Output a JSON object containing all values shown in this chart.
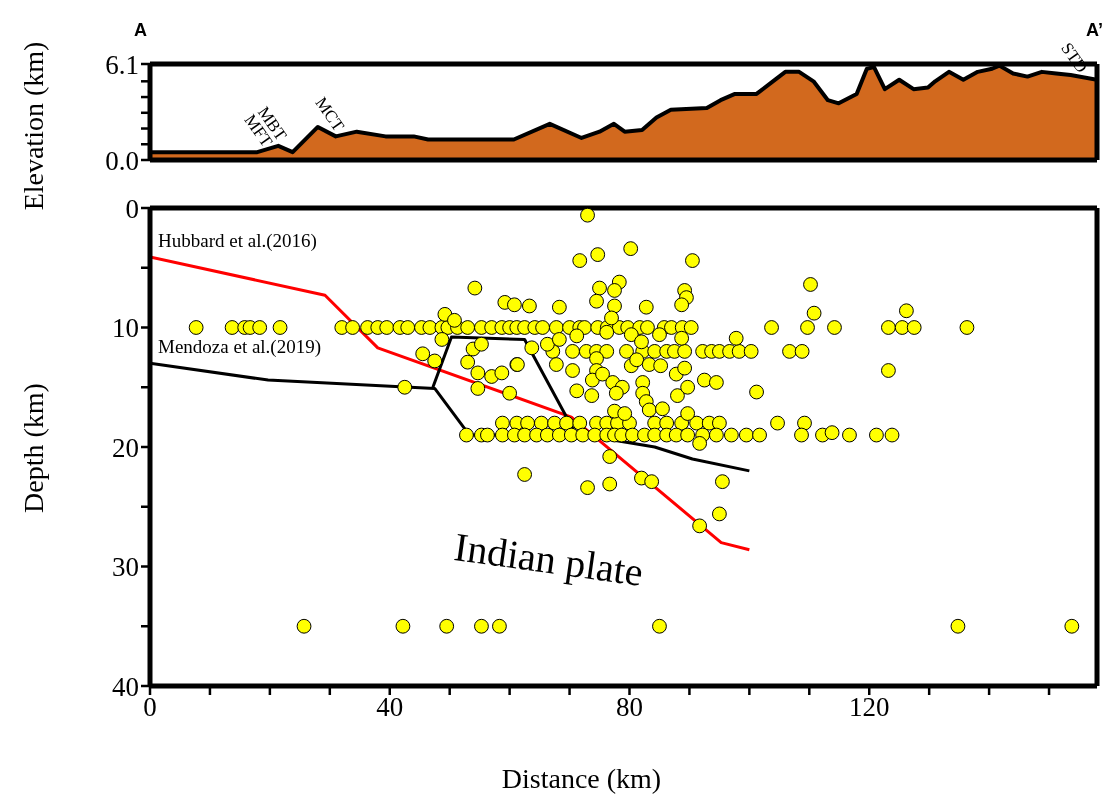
{
  "chart_data": [
    {
      "type": "area",
      "ylabel": "Elevation (km)",
      "color": "#d2691e",
      "xlim": [
        0,
        158
      ],
      "ylim": [
        0,
        6.1
      ],
      "tick_labels": "y",
      "yticks": [
        {
          "value": 0,
          "label": "0.0"
        },
        {
          "value": 1,
          "label": null
        },
        {
          "value": 2,
          "label": null
        },
        {
          "value": 3,
          "label": null
        },
        {
          "value": 4,
          "label": null
        },
        {
          "value": 5,
          "label": null
        },
        6.1
      ],
      "x": [
        0,
        10.7,
        17.9,
        21.4,
        23.8,
        28,
        31,
        34.5,
        39.3,
        44,
        46.4,
        60.7,
        66.7,
        72,
        75,
        77.4,
        79.2,
        82.1,
        84.5,
        86.9,
        92.9,
        95.2,
        97.6,
        101.2,
        103.6,
        106,
        108.3,
        110.7,
        113.1,
        114.9,
        117.9,
        119.6,
        120.8,
        122.6,
        125,
        127.4,
        129.8,
        131,
        133.3,
        135.7,
        138.1,
        140.5,
        141.7,
        144,
        146.4,
        148.8,
        151.2,
        153.6,
        158
      ],
      "values": [
        0.5,
        0.5,
        0.5,
        0.9,
        0.5,
        2.1,
        1.5,
        1.8,
        1.5,
        1.5,
        1.3,
        1.3,
        2.3,
        1.4,
        1.8,
        2.3,
        1.8,
        1.9,
        2.7,
        3.2,
        3.3,
        3.8,
        4.2,
        4.2,
        4.9,
        5.6,
        5.6,
        5,
        3.8,
        3.6,
        4.2,
        5.8,
        5.9,
        4.5,
        5.1,
        4.5,
        4.6,
        5,
        5.6,
        5.1,
        5.6,
        5.8,
        6,
        5.5,
        5.3,
        5.6,
        5.5,
        5.4,
        5.1
      ],
      "annotations": [
        "A",
        "A’",
        {
          "text": "MFT",
          "x": 19,
          "y": 0.5
        },
        {
          "text": "MBT",
          "x": 21.4,
          "y": 0.9
        },
        {
          "text": "MCT",
          "x": 31,
          "y": 1.5
        },
        {
          "text": "STD",
          "x": 155,
          "y": 5.2
        }
      ]
    },
    {
      "type": "scatter",
      "xlabel": "Distance (km)",
      "ylabel": "Depth (km)",
      "xlim": [
        0,
        158
      ],
      "ylim": [
        40,
        0
      ],
      "xticks": [
        0,
        {
          "value": 10,
          "label": null
        },
        {
          "value": 20,
          "label": null
        },
        {
          "value": 30,
          "label": null
        },
        40,
        {
          "value": 50,
          "label": null
        },
        {
          "value": 60,
          "label": null
        },
        {
          "value": 70,
          "label": null
        },
        80,
        {
          "value": 90,
          "label": null
        },
        {
          "value": 100,
          "label": null
        },
        {
          "value": 110,
          "label": null
        },
        120,
        {
          "value": 130,
          "label": null
        },
        {
          "value": 140,
          "label": null
        },
        {
          "value": 150,
          "label": null
        }
      ],
      "yticks": [
        0,
        {
          "value": 5,
          "label": null
        },
        10,
        {
          "value": 15,
          "label": null
        },
        20,
        {
          "value": 25,
          "label": null
        },
        30,
        {
          "value": 35,
          "label": null
        },
        40
      ],
      "annotations": [
        "Indian plate"
      ],
      "series": [
        {
          "color": "#ffff00",
          "marker": "circle",
          "x": [
            7.7,
            13.7,
            15.8,
            16.7,
            18.3,
            21.7,
            32,
            33.8,
            36.3,
            38,
            39.5,
            41.7,
            43,
            45.3,
            46.7,
            48.7,
            49.7,
            51.3,
            53,
            55.3,
            57,
            58.7,
            60,
            61.2,
            62.5,
            64.2,
            65.5,
            67.8,
            70,
            71.7,
            72.5,
            74.7,
            76.3,
            78.3,
            79.7,
            81.7,
            83,
            85.8,
            87,
            88.8,
            90.3,
            103.7,
            109.7,
            114.2,
            123.2,
            125.5,
            127.5,
            136.3,
            67.2,
            70.5,
            72.8,
            74.5,
            76.2,
            79.5,
            82.2,
            84.2,
            86.2,
            87.5,
            89.2,
            92.2,
            93.7,
            95,
            96.7,
            98.3,
            100.3,
            106.7,
            108.8,
            58.8,
            61.2,
            63,
            65.3,
            67.5,
            69.5,
            71.7,
            74.5,
            76.2,
            78,
            80,
            84.2,
            86.2,
            88.7,
            91.2,
            93.3,
            95,
            104.7,
            109.2,
            52.8,
            55.3,
            56.3,
            58.8,
            60.8,
            62.5,
            64.5,
            66.3,
            68.3,
            70.3,
            72.2,
            74.2,
            76.2,
            77.5,
            78.7,
            80.5,
            82.5,
            84.2,
            86.2,
            87.8,
            89.7,
            92.2,
            94.5,
            97,
            99.5,
            101.7,
            108.7,
            112.2,
            116.7,
            121.2,
            123.8,
            113.8,
            25.7,
            42.2,
            49.5,
            55.3,
            58.3,
            85,
            134.8,
            153.8,
            54.2,
            59.2,
            60.8,
            49.2,
            50.8,
            48.7,
            53.9,
            55.3,
            45.5,
            47.5,
            53,
            54.7,
            57,
            58.7,
            54.7,
            60,
            42.5,
            61.2,
            73,
            71.7,
            74.7,
            80.2,
            90.5,
            78.3,
            75,
            77.5,
            89.2,
            89.5,
            74.5,
            88.7,
            77.5,
            68.3,
            63.3,
            82.8,
            77,
            97.8,
            63.7,
            66.3,
            68.3,
            71.2,
            76.2,
            80.3,
            82,
            85,
            88.7,
            61.3,
            67.8,
            70.5,
            74.5,
            74.5,
            80.3,
            81.2,
            83.3,
            85.2,
            87.8,
            89.2,
            73.8,
            75.5,
            77.2,
            78.8,
            71.2,
            73.7,
            77.8,
            82.2,
            82.2,
            82.8,
            83.3,
            85.5,
            88,
            89.7,
            92.5,
            94.5,
            101.2,
            77.5,
            79.2,
            89.7,
            91.7,
            76.7,
            62.5,
            73,
            76.7,
            82,
            83.7,
            95.5,
            95,
            91.7,
            110.2,
            110.8,
            126.2,
            123.2
          ],
          "values": [
            10,
            10,
            10,
            10,
            10,
            10,
            10,
            10,
            10,
            10,
            10,
            10,
            10,
            10,
            10,
            10,
            10,
            10,
            10,
            10,
            10,
            10,
            10,
            10,
            10,
            10,
            10,
            10,
            10,
            10,
            10,
            10,
            10,
            10,
            10,
            10,
            10,
            10,
            10,
            10,
            10,
            10,
            10,
            10,
            10,
            10,
            10,
            10,
            12,
            12,
            12,
            12,
            12,
            12,
            12,
            12,
            12,
            12,
            12,
            12,
            12,
            12,
            12,
            12,
            12,
            12,
            12,
            18,
            18,
            18,
            18,
            18,
            18,
            18,
            18,
            18,
            18,
            18,
            18,
            18,
            18,
            18,
            18,
            18,
            18,
            18,
            19,
            19,
            19,
            19,
            19,
            19,
            19,
            19,
            19,
            19,
            19,
            19,
            19,
            19,
            19,
            19,
            19,
            19,
            19,
            19,
            19,
            19,
            19,
            19,
            19,
            19,
            19,
            19,
            19,
            19,
            19,
            18.8,
            35,
            35,
            35,
            35,
            35,
            35,
            35,
            35,
            6.7,
            7.9,
            8.1,
            8.9,
            9.4,
            11,
            11.8,
            11.4,
            12.2,
            12.8,
            12.9,
            13.8,
            14.1,
            13.8,
            15.1,
            15.5,
            15,
            13.1,
            0.6,
            4.4,
            3.9,
            3.4,
            4.4,
            6.2,
            6.7,
            6.9,
            6.9,
            7.5,
            7.8,
            8.1,
            8.2,
            8.3,
            8.2,
            8.3,
            9.2,
            10.9,
            11.7,
            11.4,
            11,
            10.7,
            10.4,
            10.6,
            11.2,
            10.6,
            10.9,
            13.1,
            13.1,
            13.6,
            12.6,
            13.6,
            13.2,
            12.7,
            13.1,
            13.2,
            13.9,
            13.4,
            14.4,
            13.9,
            14.6,
            15,
            15.3,
            15.7,
            15.5,
            14.6,
            15.5,
            16.2,
            16.9,
            16.8,
            15.7,
            15,
            14.4,
            14.6,
            15.4,
            17,
            17.2,
            17.2,
            19.7,
            20.8,
            22.3,
            23.4,
            23.1,
            22.6,
            22.9,
            22.9,
            25.6,
            26.6,
            6.4,
            8.8,
            8.6,
            13.6
          ]
        },
        {
          "type": "line",
          "name": "Hubbard et al.(2016)",
          "color": "#ff0000",
          "x": [
            0,
            29.2,
            38,
            70.3,
            95.3,
            100
          ],
          "values": [
            4.1,
            7.3,
            11.7,
            17.5,
            28,
            28.6
          ]
        },
        {
          "type": "line",
          "name": "Mendoza et al.(2019)",
          "color": "#000000",
          "x": [
            0,
            19.7,
            47.5,
            53.3,
            72.2,
            84.2,
            90.5,
            100
          ],
          "values": [
            13,
            14.4,
            15.1,
            19,
            19,
            20,
            21,
            22
          ]
        },
        {
          "type": "line",
          "color": "#000000",
          "x": [
            47.2,
            50.3,
            62.5,
            70.8
          ],
          "values": [
            15,
            10.8,
            11,
            18.7
          ]
        }
      ]
    }
  ]
}
